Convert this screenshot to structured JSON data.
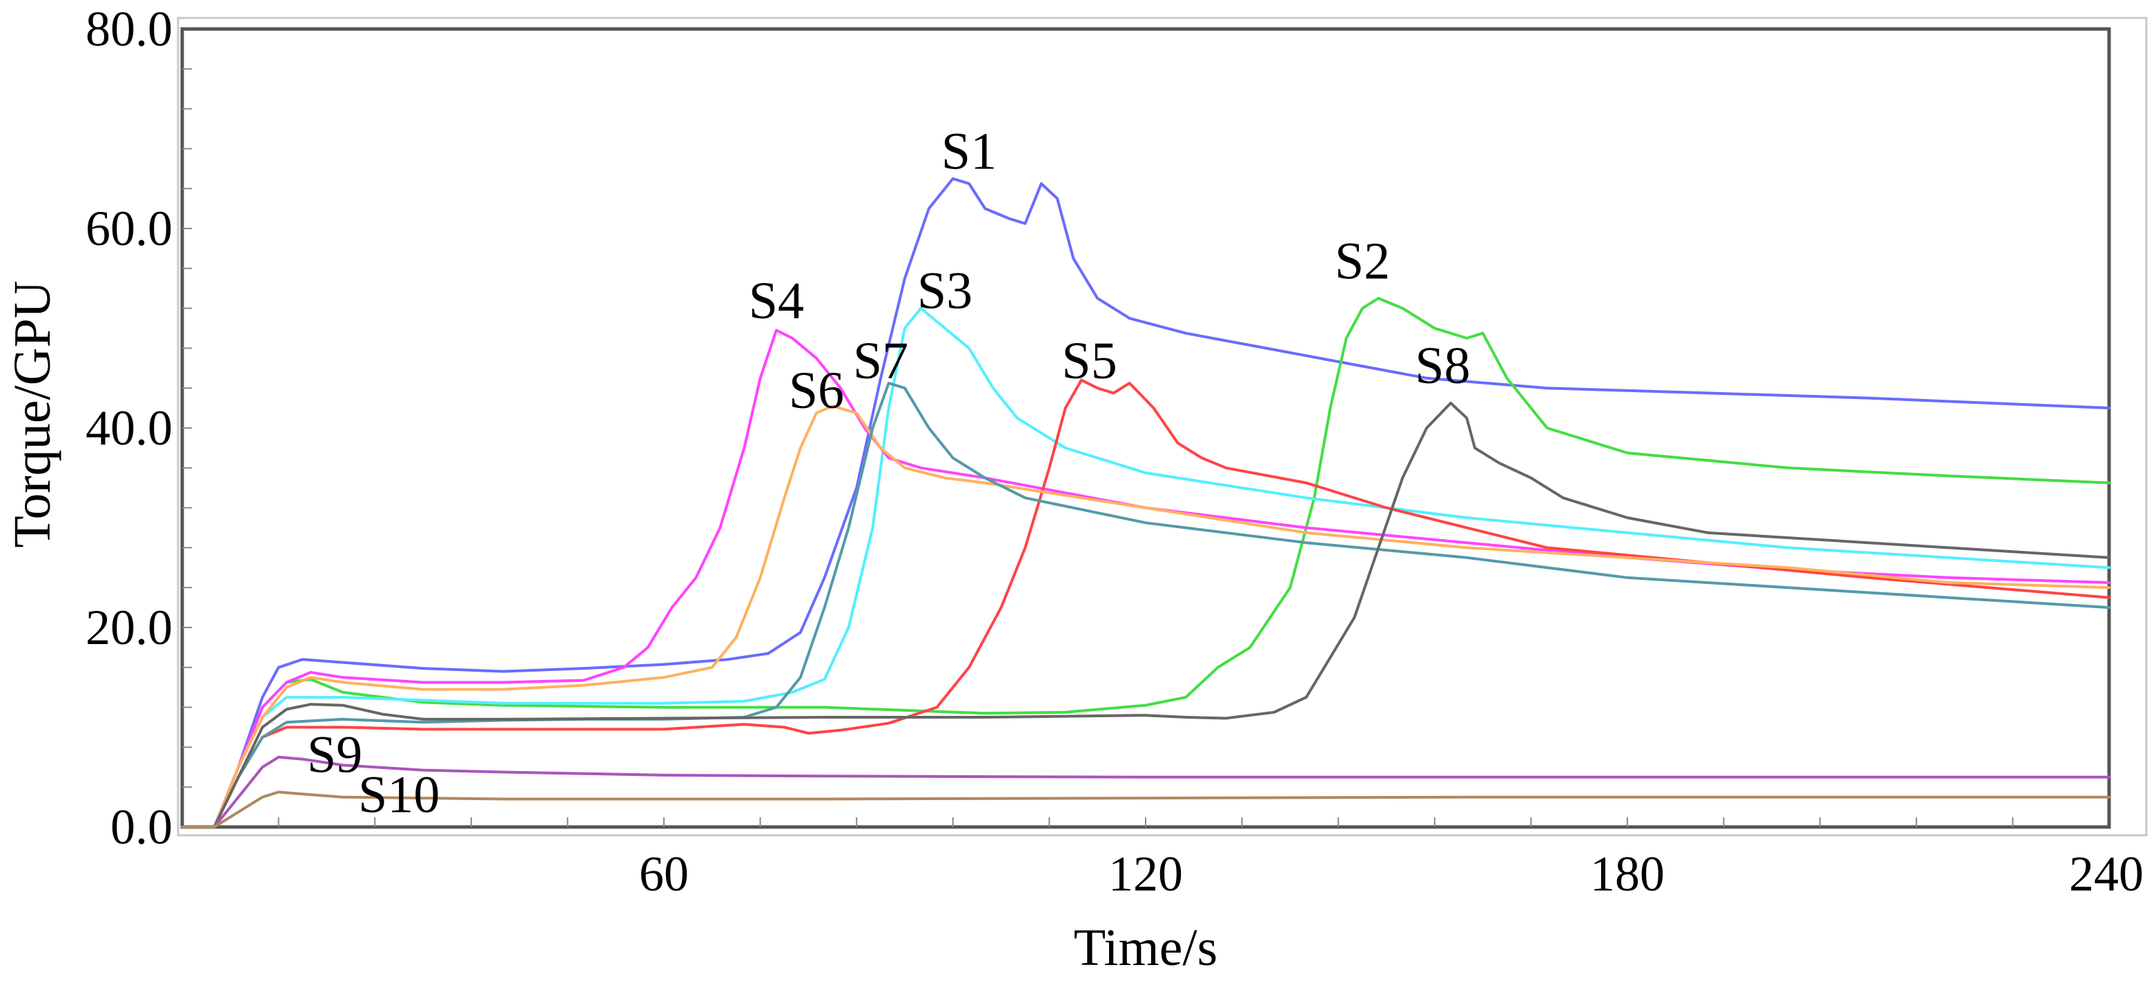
{
  "chart_data": {
    "type": "line",
    "title": "",
    "xlabel": "Time/s",
    "ylabel": "Torque/GPU",
    "xlim": [
      0,
      240
    ],
    "ylim": [
      0,
      80
    ],
    "x_ticks": [
      {
        "value": 60,
        "label": "60"
      },
      {
        "value": 120,
        "label": "120"
      },
      {
        "value": 180,
        "label": "180"
      },
      {
        "value": 240,
        "label": "240"
      }
    ],
    "y_ticks": [
      {
        "value": 0,
        "label": "0.0"
      },
      {
        "value": 20,
        "label": "20.0"
      },
      {
        "value": 40,
        "label": "40.0"
      },
      {
        "value": 60,
        "label": "60.0"
      },
      {
        "value": 80,
        "label": "80.0"
      }
    ],
    "grid": false,
    "series": [
      {
        "name": "S1",
        "color": "#6b6bff",
        "label_at": [
          98,
          66
        ],
        "points": [
          [
            0,
            0
          ],
          [
            4,
            0
          ],
          [
            7,
            6
          ],
          [
            10,
            13
          ],
          [
            12,
            16
          ],
          [
            15,
            16.8
          ],
          [
            20,
            16.5
          ],
          [
            30,
            15.9
          ],
          [
            40,
            15.6
          ],
          [
            50,
            15.9
          ],
          [
            60,
            16.3
          ],
          [
            68,
            16.8
          ],
          [
            73,
            17.4
          ],
          [
            77,
            19.5
          ],
          [
            80,
            25
          ],
          [
            84,
            34
          ],
          [
            87,
            45
          ],
          [
            90,
            55
          ],
          [
            93,
            62
          ],
          [
            96,
            65
          ],
          [
            98,
            64.5
          ],
          [
            100,
            62
          ],
          [
            103,
            61
          ],
          [
            105,
            60.5
          ],
          [
            107,
            64.5
          ],
          [
            109,
            63
          ],
          [
            111,
            57
          ],
          [
            114,
            53
          ],
          [
            118,
            51
          ],
          [
            125,
            49.5
          ],
          [
            135,
            48
          ],
          [
            145,
            46.5
          ],
          [
            155,
            45
          ],
          [
            170,
            44
          ],
          [
            190,
            43.5
          ],
          [
            210,
            43
          ],
          [
            240,
            42
          ]
        ]
      },
      {
        "name": "S2",
        "color": "#44dd44",
        "label_at": [
          147,
          55
        ],
        "points": [
          [
            0,
            0
          ],
          [
            4,
            0
          ],
          [
            7,
            6
          ],
          [
            10,
            12
          ],
          [
            13,
            14.5
          ],
          [
            16,
            14.8
          ],
          [
            20,
            13.5
          ],
          [
            30,
            12.5
          ],
          [
            40,
            12.2
          ],
          [
            60,
            12
          ],
          [
            80,
            12
          ],
          [
            100,
            11.4
          ],
          [
            110,
            11.5
          ],
          [
            120,
            12.2
          ],
          [
            125,
            13
          ],
          [
            129,
            16
          ],
          [
            133,
            18
          ],
          [
            138,
            24
          ],
          [
            141,
            33
          ],
          [
            143,
            42
          ],
          [
            145,
            49
          ],
          [
            147,
            52
          ],
          [
            149,
            53
          ],
          [
            152,
            52
          ],
          [
            156,
            50
          ],
          [
            160,
            49
          ],
          [
            162,
            49.5
          ],
          [
            165,
            45
          ],
          [
            170,
            40
          ],
          [
            180,
            37.5
          ],
          [
            200,
            36
          ],
          [
            220,
            35.2
          ],
          [
            240,
            34.5
          ]
        ]
      },
      {
        "name": "S3",
        "color": "#55eeff",
        "label_at": [
          95,
          52
        ],
        "points": [
          [
            0,
            0
          ],
          [
            4,
            0
          ],
          [
            7,
            6
          ],
          [
            10,
            11
          ],
          [
            13,
            13
          ],
          [
            20,
            13
          ],
          [
            40,
            12.4
          ],
          [
            60,
            12.4
          ],
          [
            70,
            12.6
          ],
          [
            76,
            13.5
          ],
          [
            80,
            14.8
          ],
          [
            83,
            20
          ],
          [
            86,
            30
          ],
          [
            88,
            42
          ],
          [
            90,
            50
          ],
          [
            92,
            52
          ],
          [
            95,
            50
          ],
          [
            98,
            48
          ],
          [
            101,
            44
          ],
          [
            104,
            41
          ],
          [
            110,
            38
          ],
          [
            120,
            35.5
          ],
          [
            140,
            33
          ],
          [
            160,
            31
          ],
          [
            180,
            29.5
          ],
          [
            200,
            28
          ],
          [
            220,
            27
          ],
          [
            240,
            26
          ]
        ]
      },
      {
        "name": "S4",
        "color": "#ff44ff",
        "label_at": [
          74,
          51
        ],
        "points": [
          [
            0,
            0
          ],
          [
            4,
            0
          ],
          [
            7,
            6
          ],
          [
            10,
            12
          ],
          [
            13,
            14.5
          ],
          [
            16,
            15.5
          ],
          [
            20,
            15
          ],
          [
            30,
            14.5
          ],
          [
            40,
            14.5
          ],
          [
            50,
            14.7
          ],
          [
            55,
            16
          ],
          [
            58,
            18
          ],
          [
            61,
            22
          ],
          [
            64,
            25
          ],
          [
            67,
            30
          ],
          [
            70,
            38
          ],
          [
            72,
            45
          ],
          [
            74,
            49.8
          ],
          [
            76,
            49
          ],
          [
            79,
            47
          ],
          [
            82,
            44
          ],
          [
            85,
            40
          ],
          [
            88,
            37
          ],
          [
            92,
            36
          ],
          [
            100,
            35
          ],
          [
            120,
            32
          ],
          [
            140,
            30
          ],
          [
            160,
            28.5
          ],
          [
            180,
            27
          ],
          [
            200,
            25.8
          ],
          [
            220,
            25
          ],
          [
            240,
            24.5
          ]
        ]
      },
      {
        "name": "S5",
        "color": "#ff4444",
        "label_at": [
          113,
          45
        ],
        "points": [
          [
            0,
            0
          ],
          [
            4,
            0
          ],
          [
            7,
            5
          ],
          [
            10,
            9
          ],
          [
            13,
            10
          ],
          [
            20,
            10
          ],
          [
            30,
            9.8
          ],
          [
            40,
            9.8
          ],
          [
            60,
            9.8
          ],
          [
            70,
            10.3
          ],
          [
            75,
            10
          ],
          [
            78,
            9.4
          ],
          [
            82,
            9.7
          ],
          [
            88,
            10.4
          ],
          [
            94,
            12
          ],
          [
            98,
            16
          ],
          [
            102,
            22
          ],
          [
            105,
            28
          ],
          [
            108,
            36
          ],
          [
            110,
            42
          ],
          [
            112,
            44.8
          ],
          [
            114,
            44
          ],
          [
            116,
            43.5
          ],
          [
            118,
            44.5
          ],
          [
            121,
            42
          ],
          [
            124,
            38.5
          ],
          [
            127,
            37
          ],
          [
            130,
            36
          ],
          [
            140,
            34.5
          ],
          [
            150,
            32
          ],
          [
            170,
            28
          ],
          [
            190,
            26.5
          ],
          [
            210,
            25
          ],
          [
            240,
            23
          ]
        ]
      },
      {
        "name": "S6",
        "color": "#ffb060",
        "label_at": [
          79,
          42
        ],
        "points": [
          [
            0,
            0
          ],
          [
            4,
            0
          ],
          [
            7,
            6
          ],
          [
            10,
            11
          ],
          [
            13,
            14
          ],
          [
            16,
            15
          ],
          [
            20,
            14.5
          ],
          [
            30,
            13.8
          ],
          [
            40,
            13.8
          ],
          [
            50,
            14.2
          ],
          [
            60,
            15
          ],
          [
            66,
            16
          ],
          [
            69,
            19
          ],
          [
            72,
            25
          ],
          [
            75,
            33
          ],
          [
            77,
            38
          ],
          [
            79,
            41.5
          ],
          [
            81,
            42.2
          ],
          [
            84,
            41.5
          ],
          [
            87,
            38
          ],
          [
            90,
            36
          ],
          [
            95,
            35
          ],
          [
            100,
            34.5
          ],
          [
            120,
            32
          ],
          [
            140,
            29.5
          ],
          [
            160,
            28
          ],
          [
            180,
            27
          ],
          [
            200,
            26
          ],
          [
            220,
            24.5
          ],
          [
            240,
            24
          ]
        ]
      },
      {
        "name": "S7",
        "color": "#5599aa",
        "label_at": [
          87,
          45
        ],
        "points": [
          [
            0,
            0
          ],
          [
            4,
            0
          ],
          [
            7,
            5
          ],
          [
            10,
            9
          ],
          [
            13,
            10.5
          ],
          [
            20,
            10.8
          ],
          [
            30,
            10.5
          ],
          [
            40,
            10.7
          ],
          [
            50,
            10.8
          ],
          [
            60,
            10.8
          ],
          [
            70,
            11
          ],
          [
            74,
            12
          ],
          [
            77,
            15
          ],
          [
            80,
            22
          ],
          [
            83,
            30
          ],
          [
            86,
            40
          ],
          [
            88,
            44.5
          ],
          [
            90,
            44
          ],
          [
            93,
            40
          ],
          [
            96,
            37
          ],
          [
            100,
            35
          ],
          [
            105,
            33
          ],
          [
            120,
            30.5
          ],
          [
            140,
            28.5
          ],
          [
            160,
            27
          ],
          [
            180,
            25
          ],
          [
            200,
            24
          ],
          [
            220,
            23
          ],
          [
            240,
            22
          ]
        ]
      },
      {
        "name": "S8",
        "color": "#666666",
        "label_at": [
          157,
          44.5
        ],
        "points": [
          [
            0,
            0
          ],
          [
            4,
            0
          ],
          [
            7,
            5
          ],
          [
            10,
            10
          ],
          [
            13,
            11.8
          ],
          [
            16,
            12.3
          ],
          [
            20,
            12.2
          ],
          [
            25,
            11.3
          ],
          [
            30,
            10.8
          ],
          [
            40,
            10.8
          ],
          [
            60,
            10.9
          ],
          [
            80,
            11
          ],
          [
            100,
            11
          ],
          [
            120,
            11.2
          ],
          [
            125,
            11
          ],
          [
            130,
            10.9
          ],
          [
            136,
            11.5
          ],
          [
            140,
            13
          ],
          [
            143,
            17
          ],
          [
            146,
            21
          ],
          [
            149,
            28
          ],
          [
            152,
            35
          ],
          [
            155,
            40
          ],
          [
            158,
            42.5
          ],
          [
            160,
            41
          ],
          [
            161,
            38
          ],
          [
            164,
            36.5
          ],
          [
            168,
            35
          ],
          [
            172,
            33
          ],
          [
            180,
            31
          ],
          [
            190,
            29.5
          ],
          [
            200,
            29
          ],
          [
            210,
            28.5
          ],
          [
            220,
            28
          ],
          [
            230,
            27.5
          ],
          [
            240,
            27
          ]
        ]
      },
      {
        "name": "S9",
        "color": "#aa55bb",
        "label_at": [
          19,
          5.5
        ],
        "points": [
          [
            0,
            0
          ],
          [
            4,
            0
          ],
          [
            7,
            3
          ],
          [
            10,
            6
          ],
          [
            12,
            7
          ],
          [
            15,
            6.8
          ],
          [
            20,
            6.2
          ],
          [
            30,
            5.7
          ],
          [
            40,
            5.5
          ],
          [
            60,
            5.2
          ],
          [
            80,
            5.1
          ],
          [
            120,
            5
          ],
          [
            160,
            5
          ],
          [
            200,
            5
          ],
          [
            240,
            5
          ]
        ]
      },
      {
        "name": "S10",
        "color": "#b08860",
        "label_at": [
          27,
          1.5
        ],
        "points": [
          [
            0,
            0
          ],
          [
            4,
            0
          ],
          [
            7,
            1.5
          ],
          [
            10,
            3
          ],
          [
            12,
            3.5
          ],
          [
            15,
            3.3
          ],
          [
            20,
            3
          ],
          [
            40,
            2.8
          ],
          [
            80,
            2.8
          ],
          [
            120,
            2.9
          ],
          [
            160,
            3
          ],
          [
            200,
            3
          ],
          [
            240,
            3
          ]
        ]
      }
    ]
  }
}
